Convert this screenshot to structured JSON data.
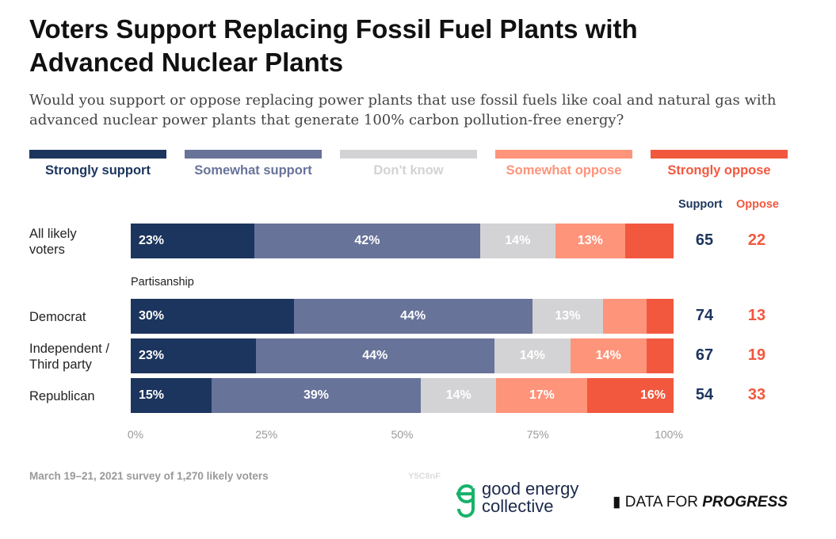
{
  "title": "Voters Support Replacing Fossil Fuel Plants with Advanced Nuclear Plants",
  "subtitle": "Would you support or oppose replacing power plants that use fossil fuels like coal and natural gas with advanced nuclear power plants that generate 100% carbon pollution-free energy?",
  "colors": [
    "#1c355e",
    "#68739a",
    "#d3d3d5",
    "#fe947a",
    "#f2583e"
  ],
  "summary_headers": {
    "support": "Support",
    "oppose": "Oppose"
  },
  "group_label": "Partisanship",
  "footer": {
    "source": "March 19–21, 2021 survey of 1,270 likely voters",
    "code": "Y5C8nF",
    "logo1": "good energy collective",
    "logo2_a": "DATA FOR",
    "logo2_b": "PROGRESS"
  },
  "chart_data": {
    "type": "bar",
    "orientation": "horizontal",
    "stacked": true,
    "series_names": [
      "Strongly support",
      "Somewhat support",
      "Don't know",
      "Somewhat oppose",
      "Strongly oppose"
    ],
    "categories": [
      "All likely voters",
      "Democrat",
      "Independent / Third party",
      "Republican"
    ],
    "values": [
      [
        23,
        42,
        14,
        13,
        9
      ],
      [
        30,
        44,
        13,
        8,
        5
      ],
      [
        23,
        44,
        14,
        14,
        5
      ],
      [
        15,
        39,
        14,
        17,
        16
      ]
    ],
    "labels": [
      [
        "23%",
        "42%",
        "14%",
        "13%",
        ""
      ],
      [
        "30%",
        "44%",
        "13%",
        "",
        ""
      ],
      [
        "23%",
        "44%",
        "14%",
        "14%",
        ""
      ],
      [
        "15%",
        "39%",
        "14%",
        "17%",
        "16%"
      ]
    ],
    "support": [
      65,
      74,
      67,
      54
    ],
    "oppose": [
      22,
      13,
      19,
      33
    ],
    "xticks": [
      "0%",
      "25%",
      "50%",
      "75%",
      "100%"
    ],
    "xlim": [
      0,
      100
    ]
  }
}
